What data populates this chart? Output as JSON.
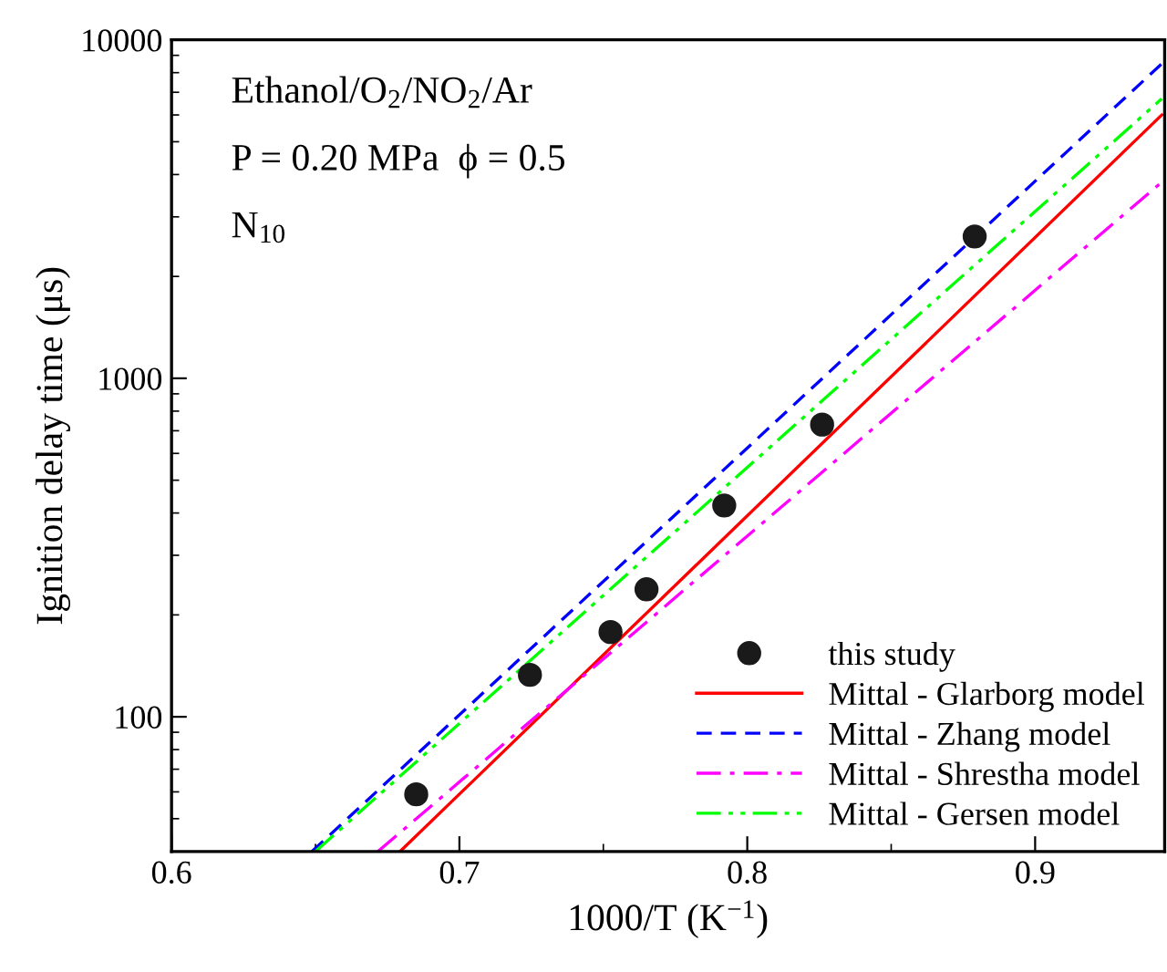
{
  "chart_data": {
    "type": "scatter",
    "xlabel": "1000/T (K$^{−1}$)",
    "ylabel": "Ignition delay time (μs)",
    "xlim": [
      0.6,
      0.945
    ],
    "xticks": [
      0.6,
      0.7,
      0.8,
      0.9
    ],
    "ylim": [
      40,
      10000
    ],
    "yticks": [
      100,
      1000,
      10000
    ],
    "log": "y",
    "grid": false,
    "legend": "bottom right",
    "annotations": [
      "Ethanol/O$_{2}$/NO$_{2}$/Ar",
      "P = 0.20 MPa  ϕ = 0.5",
      "N$_{10}$"
    ],
    "series": [
      {
        "name": "this study",
        "color": "#1a1a1a",
        "marker": "circle",
        "x": [
          0.685,
          0.7245,
          0.7525,
          0.765,
          0.792,
          0.826,
          0.879
        ],
        "values": [
          59,
          133,
          178,
          238,
          421,
          730,
          2625
        ]
      },
      {
        "name": "Mittal - Glarborg model",
        "type": "line",
        "color": "#ff0000",
        "line_style": "solid",
        "x": [
          0.6794,
          0.944
        ],
        "values": [
          40,
          6000
        ]
      },
      {
        "name": "Mittal - Zhang model",
        "type": "line",
        "color": "#0000ff",
        "line_style": "dashed",
        "x": [
          0.6488,
          0.944
        ],
        "values": [
          40,
          8500
        ]
      },
      {
        "name": "Mittal - Shrestha model",
        "type": "line",
        "color": "#ff00ff",
        "line_style": "dashdot",
        "x": [
          0.6717,
          0.944
        ],
        "values": [
          40,
          3800
        ]
      },
      {
        "name": "Mittal - Gersen model",
        "type": "line",
        "color": "#00ff00",
        "line_style": "dashdotdot",
        "x": [
          0.65,
          0.944
        ],
        "values": [
          40,
          6700
        ]
      }
    ]
  }
}
